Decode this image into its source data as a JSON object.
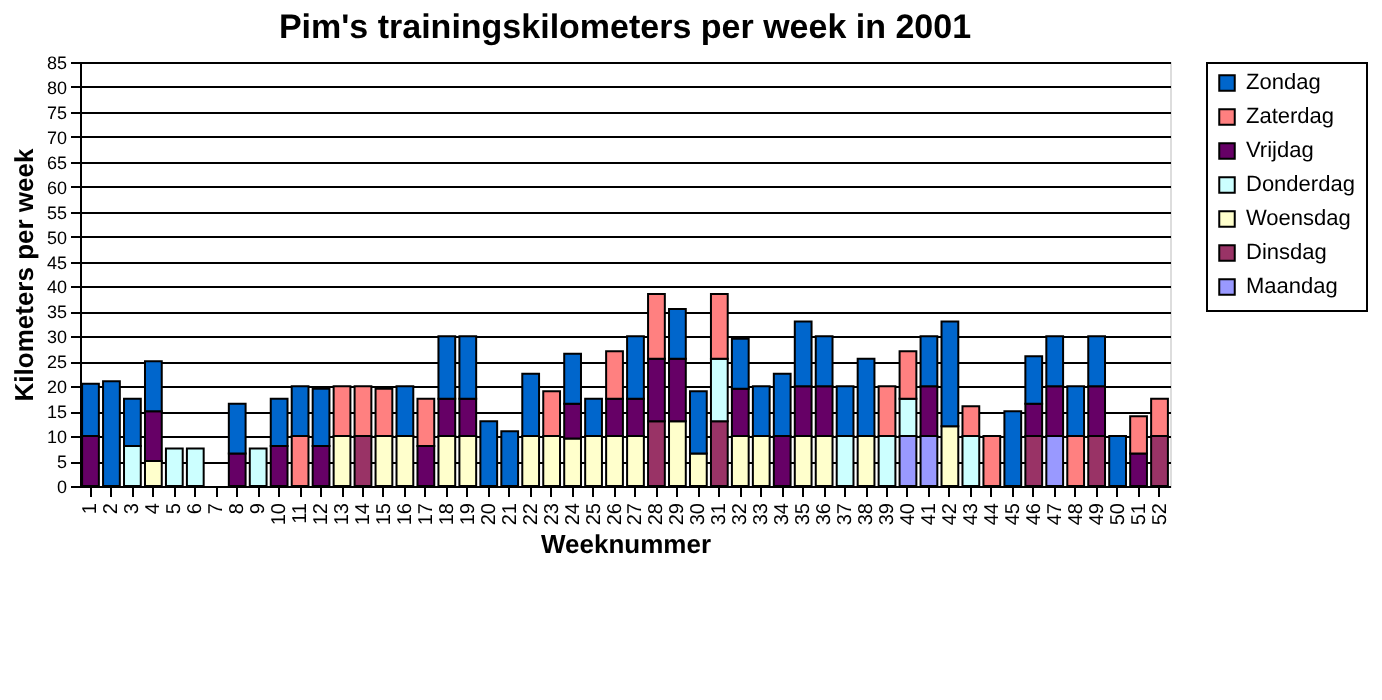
{
  "chart_data": {
    "type": "bar",
    "stacked": true,
    "title": "Pim's  trainingskilometers per week in 2001",
    "xlabel": "Weeknummer",
    "ylabel": "Kilometers per week",
    "categories": [
      "1",
      "2",
      "3",
      "4",
      "5",
      "6",
      "7",
      "8",
      "9",
      "10",
      "11",
      "12",
      "13",
      "14",
      "15",
      "16",
      "17",
      "18",
      "19",
      "20",
      "21",
      "22",
      "23",
      "24",
      "25",
      "26",
      "27",
      "28",
      "29",
      "30",
      "31",
      "32",
      "33",
      "34",
      "35",
      "36",
      "37",
      "38",
      "39",
      "40",
      "41",
      "42",
      "43",
      "44",
      "45",
      "46",
      "47",
      "48",
      "49",
      "50",
      "51",
      "52"
    ],
    "ylim": [
      0,
      85
    ],
    "yticks": [
      0,
      5,
      10,
      15,
      20,
      25,
      30,
      35,
      40,
      45,
      50,
      55,
      60,
      65,
      70,
      75,
      80,
      85
    ],
    "grid": "y",
    "legend": "right",
    "series": [
      {
        "name": "Maandag",
        "color": "#9999ff",
        "values": [
          null,
          null,
          null,
          null,
          null,
          null,
          null,
          null,
          null,
          null,
          null,
          null,
          null,
          null,
          null,
          null,
          null,
          null,
          null,
          null,
          null,
          null,
          null,
          null,
          null,
          null,
          null,
          null,
          null,
          null,
          null,
          null,
          null,
          null,
          null,
          null,
          null,
          null,
          null,
          10,
          10,
          null,
          null,
          null,
          null,
          null,
          10,
          null,
          null,
          null,
          null,
          null
        ]
      },
      {
        "name": "Dinsdag",
        "color": "#993366",
        "values": [
          null,
          null,
          null,
          null,
          null,
          null,
          null,
          null,
          null,
          null,
          null,
          null,
          null,
          10,
          null,
          null,
          null,
          null,
          null,
          null,
          null,
          null,
          null,
          null,
          null,
          null,
          null,
          13,
          null,
          null,
          13,
          null,
          null,
          null,
          null,
          null,
          null,
          null,
          null,
          null,
          null,
          null,
          null,
          null,
          null,
          10,
          null,
          null,
          10,
          null,
          null,
          10
        ]
      },
      {
        "name": "Woensdag",
        "color": "#ffffcc",
        "values": [
          null,
          null,
          null,
          5,
          null,
          null,
          null,
          null,
          null,
          null,
          null,
          null,
          10,
          null,
          10,
          10,
          null,
          10,
          10,
          null,
          null,
          10,
          10,
          9.5,
          10,
          10,
          10,
          null,
          13,
          6.5,
          null,
          10,
          10,
          null,
          10,
          10,
          null,
          10,
          null,
          null,
          null,
          12,
          null,
          null,
          null,
          null,
          null,
          null,
          null,
          null,
          null,
          null
        ]
      },
      {
        "name": "Donderdag",
        "color": "#ccffff",
        "values": [
          null,
          null,
          8,
          null,
          7.5,
          7.5,
          null,
          null,
          7.5,
          null,
          null,
          null,
          null,
          null,
          null,
          null,
          null,
          null,
          null,
          null,
          null,
          null,
          null,
          null,
          null,
          null,
          null,
          null,
          null,
          null,
          12.5,
          null,
          null,
          null,
          null,
          null,
          10,
          null,
          10,
          7.5,
          null,
          null,
          10,
          null,
          null,
          null,
          null,
          null,
          null,
          null,
          null,
          null
        ]
      },
      {
        "name": "Vrijdag",
        "color": "#660066",
        "values": [
          10,
          null,
          null,
          10,
          null,
          null,
          null,
          6.5,
          null,
          8,
          null,
          8,
          null,
          null,
          null,
          null,
          8,
          7.5,
          7.5,
          null,
          null,
          null,
          null,
          7,
          null,
          7.5,
          7.5,
          12.5,
          12.5,
          null,
          null,
          9.5,
          null,
          10,
          10,
          10,
          null,
          null,
          null,
          null,
          10,
          null,
          null,
          null,
          null,
          6.5,
          10,
          null,
          10,
          null,
          6.5,
          null
        ]
      },
      {
        "name": "Zaterdag",
        "color": "#ff8080",
        "values": [
          null,
          null,
          null,
          null,
          null,
          null,
          null,
          null,
          null,
          null,
          10,
          null,
          10,
          10,
          9.5,
          null,
          9.5,
          null,
          null,
          null,
          null,
          null,
          9,
          null,
          null,
          9.5,
          null,
          13,
          null,
          null,
          13,
          null,
          null,
          null,
          null,
          null,
          null,
          null,
          10,
          9.5,
          null,
          null,
          6,
          10,
          null,
          null,
          null,
          10,
          null,
          null,
          7.5,
          7.5
        ]
      },
      {
        "name": "Zondag",
        "color": "#0066cc",
        "values": [
          10.5,
          21,
          9.5,
          10,
          null,
          null,
          null,
          10,
          null,
          9.5,
          10,
          11.5,
          null,
          null,
          null,
          10,
          null,
          12.5,
          12.5,
          13,
          11,
          12.5,
          null,
          10,
          7.5,
          null,
          12.5,
          null,
          10,
          12.5,
          null,
          10,
          10,
          12.5,
          13,
          10,
          10,
          15.5,
          null,
          null,
          10,
          21,
          null,
          null,
          15,
          9.5,
          10,
          10,
          10,
          10,
          null,
          null
        ]
      }
    ]
  }
}
